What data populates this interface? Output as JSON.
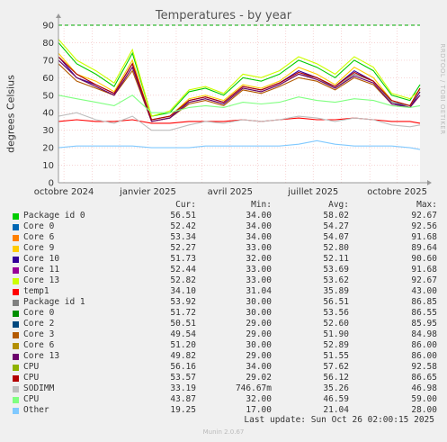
{
  "title": "Temperatures - by year",
  "side_label": "RRDTOOL / TOBI OETIKER",
  "legend_headers": {
    "cur": "Cur:",
    "min": "Min:",
    "avg": "Avg:",
    "max": "Max:"
  },
  "legend": [
    {
      "name": "Package id 0",
      "cur": "56.51",
      "min": "34.00",
      "avg": "58.02",
      "max": "92.67",
      "color": "#00cc00"
    },
    {
      "name": "Core 0",
      "cur": "52.42",
      "min": "34.00",
      "avg": "54.27",
      "max": "92.56",
      "color": "#0066b3"
    },
    {
      "name": "Core 6",
      "cur": "53.34",
      "min": "34.00",
      "avg": "54.07",
      "max": "91.68",
      "color": "#ff8000"
    },
    {
      "name": "Core 9",
      "cur": "52.27",
      "min": "33.00",
      "avg": "52.80",
      "max": "89.64",
      "color": "#ffcc00"
    },
    {
      "name": "Core 10",
      "cur": "51.73",
      "min": "32.00",
      "avg": "52.11",
      "max": "90.60",
      "color": "#330099"
    },
    {
      "name": "Core 11",
      "cur": "52.44",
      "min": "33.00",
      "avg": "53.69",
      "max": "91.68",
      "color": "#990099"
    },
    {
      "name": "Core 13",
      "cur": "52.82",
      "min": "33.00",
      "avg": "53.62",
      "max": "92.67",
      "color": "#ccff00"
    },
    {
      "name": "temp1",
      "cur": "34.10",
      "min": "31.04",
      "avg": "35.89",
      "max": "43.00",
      "color": "#ff0000"
    },
    {
      "name": "Package id 1",
      "cur": "53.92",
      "min": "30.00",
      "avg": "56.51",
      "max": "86.85",
      "color": "#808080"
    },
    {
      "name": "Core 0",
      "cur": "51.72",
      "min": "30.00",
      "avg": "53.56",
      "max": "86.55",
      "color": "#008f00"
    },
    {
      "name": "Core 2",
      "cur": "50.51",
      "min": "29.00",
      "avg": "52.60",
      "max": "85.95",
      "color": "#00487d"
    },
    {
      "name": "Core 3",
      "cur": "49.54",
      "min": "29.00",
      "avg": "51.90",
      "max": "84.98",
      "color": "#b35a00"
    },
    {
      "name": "Core 6",
      "cur": "51.20",
      "min": "30.00",
      "avg": "52.89",
      "max": "86.00",
      "color": "#b38f00"
    },
    {
      "name": "Core 13",
      "cur": "49.82",
      "min": "29.00",
      "avg": "51.55",
      "max": "86.00",
      "color": "#6b006b"
    },
    {
      "name": "CPU",
      "cur": "56.16",
      "min": "34.00",
      "avg": "57.62",
      "max": "92.58",
      "color": "#8fb300"
    },
    {
      "name": "CPU",
      "cur": "53.57",
      "min": "29.02",
      "avg": "56.12",
      "max": "86.65",
      "color": "#b30000"
    },
    {
      "name": "SODIMM",
      "cur": "33.19",
      "min": "746.67m",
      "avg": "35.26",
      "max": "46.98",
      "color": "#bebebe"
    },
    {
      "name": "CPU",
      "cur": "43.87",
      "min": "32.00",
      "avg": "46.59",
      "max": "59.00",
      "color": "#80ff80"
    },
    {
      "name": "Other",
      "cur": "19.25",
      "min": "17.00",
      "avg": "21.04",
      "max": "28.00",
      "color": "#80c9ff"
    }
  ],
  "last_update": "Last update: Sun Oct 26 02:00:15 2025",
  "version": "Munin 2.0.67",
  "chart_data": {
    "type": "line",
    "title": "Temperatures - by year",
    "ylabel": "degrees Celsius",
    "ylim": [
      0,
      90
    ],
    "y_ticks": [
      "0",
      "10",
      "20",
      "30",
      "40",
      "50",
      "60",
      "70",
      "80",
      "90"
    ],
    "x_ticks": [
      "octobre 2024",
      "janvier 2025",
      "avril 2025",
      "juillet 2025",
      "octobre 2025"
    ],
    "threshold": 90,
    "grid": true,
    "x": [
      "2024-09-25",
      "2024-10-15",
      "2024-11-05",
      "2024-11-25",
      "2024-12-15",
      "2025-01-05",
      "2025-01-25",
      "2025-02-15",
      "2025-03-05",
      "2025-03-25",
      "2025-04-15",
      "2025-05-05",
      "2025-05-25",
      "2025-06-15",
      "2025-07-05",
      "2025-07-25",
      "2025-08-15",
      "2025-09-05",
      "2025-09-25",
      "2025-10-15",
      "2025-10-26"
    ],
    "series": [
      {
        "name": "Package id 0",
        "color": "#00cc00",
        "values": [
          80,
          68,
          62,
          55,
          74,
          38,
          40,
          52,
          54,
          50,
          60,
          58,
          62,
          70,
          66,
          60,
          70,
          64,
          50,
          47,
          56
        ]
      },
      {
        "name": "Core 9",
        "color": "#ffcc00",
        "values": [
          74,
          62,
          58,
          52,
          70,
          36,
          38,
          48,
          50,
          47,
          56,
          54,
          58,
          66,
          62,
          56,
          66,
          60,
          47,
          44,
          52
        ]
      },
      {
        "name": "Core 10",
        "color": "#330099",
        "values": [
          72,
          60,
          56,
          51,
          68,
          35,
          37,
          47,
          49,
          46,
          55,
          53,
          57,
          64,
          60,
          55,
          64,
          58,
          46,
          43,
          52
        ]
      },
      {
        "name": "Core 13",
        "color": "#ccff00",
        "values": [
          82,
          70,
          64,
          57,
          76,
          38,
          41,
          53,
          55,
          51,
          62,
          60,
          64,
          72,
          68,
          62,
          72,
          66,
          51,
          48,
          53
        ]
      },
      {
        "name": "temp1",
        "color": "#ff0000",
        "values": [
          35,
          36,
          35,
          35,
          36,
          34,
          34,
          35,
          35,
          35,
          36,
          35,
          36,
          37,
          36,
          36,
          37,
          36,
          35,
          35,
          34
        ]
      },
      {
        "name": "Package id 1",
        "color": "#808080",
        "values": [
          70,
          60,
          55,
          50,
          66,
          36,
          38,
          46,
          48,
          45,
          54,
          52,
          56,
          62,
          60,
          54,
          62,
          58,
          46,
          44,
          54
        ]
      },
      {
        "name": "Core 3",
        "color": "#b35a00",
        "values": [
          68,
          58,
          54,
          50,
          64,
          35,
          37,
          45,
          47,
          44,
          53,
          51,
          55,
          60,
          58,
          53,
          60,
          56,
          45,
          43,
          50
        ]
      },
      {
        "name": "Core 13",
        "color": "#6b006b",
        "values": [
          70,
          60,
          55,
          50,
          66,
          35,
          37,
          46,
          48,
          45,
          54,
          52,
          56,
          62,
          59,
          54,
          61,
          57,
          45,
          43,
          50
        ]
      },
      {
        "name": "CPU",
        "color": "#b30000",
        "values": [
          72,
          62,
          56,
          51,
          68,
          36,
          38,
          47,
          49,
          46,
          55,
          53,
          57,
          63,
          60,
          55,
          63,
          58,
          47,
          44,
          54
        ]
      },
      {
        "name": "SODIMM",
        "color": "#bebebe",
        "values": [
          38,
          40,
          36,
          34,
          38,
          30,
          30,
          33,
          35,
          34,
          36,
          35,
          36,
          38,
          37,
          35,
          37,
          36,
          33,
          32,
          33
        ]
      },
      {
        "name": "CPU",
        "color": "#80ff80",
        "values": [
          50,
          48,
          46,
          44,
          50,
          40,
          40,
          43,
          44,
          43,
          46,
          45,
          46,
          49,
          47,
          46,
          48,
          47,
          44,
          43,
          44
        ]
      },
      {
        "name": "Other",
        "color": "#80c9ff",
        "values": [
          20,
          21,
          21,
          21,
          21,
          20,
          20,
          20,
          21,
          21,
          21,
          21,
          21,
          22,
          24,
          22,
          21,
          21,
          21,
          20,
          19
        ]
      }
    ]
  }
}
